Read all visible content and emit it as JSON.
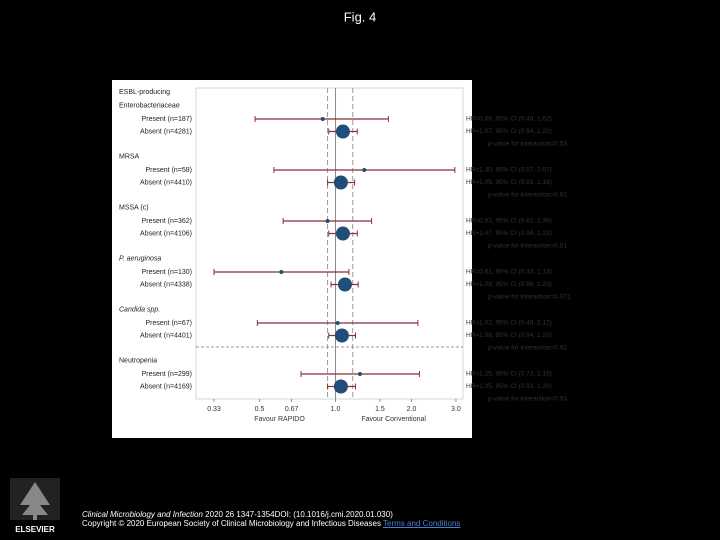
{
  "title": "Fig. 4",
  "chart_data": {
    "type": "forest",
    "xscale": "log",
    "xlim": [
      0.28,
      3.2
    ],
    "xticks": [
      0.33,
      0.5,
      0.67,
      {
        "value": 1,
        "label": "1.0"
      },
      1.5,
      {
        "value": 2,
        "label": "2.0"
      },
      {
        "value": 3,
        "label": "3.0"
      }
    ],
    "xlabel_left": "Favour RAPIDO",
    "xlabel_right": "Favour Conventional",
    "reference_lines": [
      0.93,
      1.17
    ],
    "line_color": "#8b2f3b",
    "marker_color": "#1f4e79",
    "groups": [
      {
        "label_lines": [
          "ESBL-producing",
          "Enterobacteriaceae"
        ],
        "italic": false,
        "rows": [
          {
            "label": "Present (n=187)",
            "hr": 0.89,
            "lo": 0.48,
            "hi": 1.62,
            "text": "HR=0.89, 95% CI (0.48, 1.62)"
          },
          {
            "label": "Absent (n=4281)",
            "hr": 1.07,
            "lo": 0.94,
            "hi": 1.22,
            "text": "HR=1.07, 95% CI (0.94, 1.22)"
          }
        ],
        "p_text": "p-value for interaction=0.53"
      },
      {
        "label_lines": [
          "MRSA"
        ],
        "italic": false,
        "rows": [
          {
            "label": "Present (n=58)",
            "hr": 1.3,
            "lo": 0.57,
            "hi": 2.97,
            "text": "HR=1.30, 95% CI (0.57, 2.97)"
          },
          {
            "label": "Absent (n=4410)",
            "hr": 1.05,
            "lo": 0.93,
            "hi": 1.19,
            "text": "HR=1.05, 95% CI (0.93, 1.19)"
          }
        ],
        "p_text": "p-value for interaction=0.62"
      },
      {
        "label_lines": [
          "MSSA (c)"
        ],
        "italic": false,
        "rows": [
          {
            "label": "Present (n=362)",
            "hr": 0.93,
            "lo": 0.62,
            "hi": 1.39,
            "text": "HR=0.93, 95% CI (0.62, 1.39)"
          },
          {
            "label": "Absent (n=4106)",
            "hr": 1.07,
            "lo": 0.94,
            "hi": 1.22,
            "text": "HR=1.07, 95% CI (0.94, 1.22)"
          }
        ],
        "p_text": "p-value for interaction=0.51"
      },
      {
        "label_lines": [
          "P. aeruginosa"
        ],
        "italic": true,
        "rows": [
          {
            "label": "Present (n=130)",
            "hr": 0.61,
            "lo": 0.33,
            "hi": 1.13,
            "text": "HR=0.61, 95% CI (0.33, 1.13)"
          },
          {
            "label": "Absent (n=4338)",
            "hr": 1.09,
            "lo": 0.96,
            "hi": 1.23,
            "text": "HR=1.09, 95% CI (0.96, 1.23)"
          }
        ],
        "p_text": "p-value for interaction=0.071"
      },
      {
        "label_lines": [
          "Candida spp."
        ],
        "italic": true,
        "rows": [
          {
            "label": "Present (n=67)",
            "hr": 1.02,
            "lo": 0.49,
            "hi": 2.12,
            "text": "HR=1.02, 95% CI (0.49, 2.12)"
          },
          {
            "label": "Absent (n=4401)",
            "hr": 1.06,
            "lo": 0.94,
            "hi": 1.2,
            "text": "HR=1.06, 95% CI (0.94, 1.20)"
          }
        ],
        "p_text": "p-value for interaction=0.92"
      },
      {
        "label_lines": [
          "Neutropenia"
        ],
        "italic": false,
        "rows": [
          {
            "label": "Present (n=299)",
            "hr": 1.25,
            "lo": 0.73,
            "hi": 2.15,
            "text": "HR=1.25, 95% CI (0.73, 2.15)"
          },
          {
            "label": "Absent (n=4169)",
            "hr": 1.05,
            "lo": 0.93,
            "hi": 1.2,
            "text": "HR=1.05, 95% CI (0.93, 1.20)"
          }
        ],
        "p_text": "p-value for interaction=0.53"
      }
    ]
  },
  "footer": {
    "journal": "Clinical Microbiology and Infection",
    "citation": " 2020 26 1347-1354DOI: (10.1016/j.cmi.2020.01.030)",
    "copyright": "Copyright © 2020 European Society of Clinical Microbiology and Infectious Diseases",
    "link": "Terms and Conditions",
    "publisher": "ELSEVIER"
  }
}
